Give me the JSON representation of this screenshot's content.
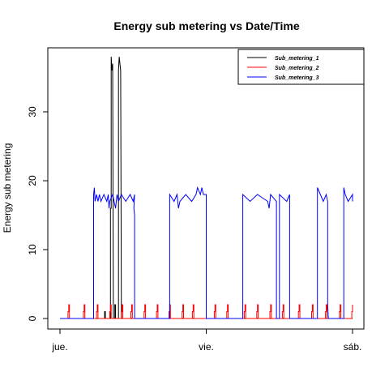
{
  "chart_data": {
    "type": "line",
    "title": "Energy sub metering vs Date/Time",
    "xlabel": "",
    "ylabel": "Energy sub metering",
    "x_range_days": [
      0,
      2
    ],
    "ylim": [
      0,
      38
    ],
    "x_ticks": [
      {
        "x": 0,
        "label": "jue."
      },
      {
        "x": 1,
        "label": "vie."
      },
      {
        "x": 2,
        "label": "sáb."
      }
    ],
    "y_ticks": [
      0,
      10,
      20,
      30
    ],
    "grid": false,
    "legend_position": "top-right",
    "series": [
      {
        "name": "Sub_metering_1",
        "color": "#000000",
        "points": [
          [
            0,
            0
          ],
          [
            0.305,
            0
          ],
          [
            0.305,
            1
          ],
          [
            0.31,
            1
          ],
          [
            0.31,
            0
          ],
          [
            0.345,
            0
          ],
          [
            0.345,
            16
          ],
          [
            0.35,
            16
          ],
          [
            0.35,
            38
          ],
          [
            0.355,
            36
          ],
          [
            0.36,
            37
          ],
          [
            0.365,
            0
          ],
          [
            0.375,
            0
          ],
          [
            0.375,
            2
          ],
          [
            0.38,
            2
          ],
          [
            0.38,
            0
          ],
          [
            0.4,
            0
          ],
          [
            0.4,
            36
          ],
          [
            0.405,
            38
          ],
          [
            0.41,
            37
          ],
          [
            0.415,
            36
          ],
          [
            0.42,
            0
          ],
          [
            2,
            0
          ]
        ]
      },
      {
        "name": "Sub_metering_2",
        "color": "#ff0000",
        "points": [
          [
            0,
            0
          ],
          [
            0.055,
            0
          ],
          [
            0.055,
            1
          ],
          [
            0.06,
            1
          ],
          [
            0.06,
            2
          ],
          [
            0.065,
            2
          ],
          [
            0.065,
            0
          ],
          [
            0.16,
            0
          ],
          [
            0.16,
            1
          ],
          [
            0.165,
            1
          ],
          [
            0.165,
            2
          ],
          [
            0.17,
            2
          ],
          [
            0.17,
            0
          ],
          [
            0.25,
            0
          ],
          [
            0.25,
            1
          ],
          [
            0.255,
            1
          ],
          [
            0.255,
            2
          ],
          [
            0.26,
            2
          ],
          [
            0.26,
            0
          ],
          [
            0.34,
            0
          ],
          [
            0.34,
            1
          ],
          [
            0.345,
            1
          ],
          [
            0.345,
            2
          ],
          [
            0.35,
            2
          ],
          [
            0.35,
            0
          ],
          [
            0.42,
            0
          ],
          [
            0.42,
            1
          ],
          [
            0.425,
            1
          ],
          [
            0.425,
            2
          ],
          [
            0.43,
            2
          ],
          [
            0.43,
            0
          ],
          [
            0.485,
            0
          ],
          [
            0.485,
            1
          ],
          [
            0.49,
            1
          ],
          [
            0.49,
            2
          ],
          [
            0.495,
            2
          ],
          [
            0.495,
            0
          ],
          [
            0.575,
            0
          ],
          [
            0.575,
            1
          ],
          [
            0.58,
            1
          ],
          [
            0.58,
            2
          ],
          [
            0.585,
            2
          ],
          [
            0.585,
            0
          ],
          [
            0.66,
            0
          ],
          [
            0.66,
            1
          ],
          [
            0.665,
            1
          ],
          [
            0.665,
            2
          ],
          [
            0.67,
            2
          ],
          [
            0.67,
            0
          ],
          [
            0.745,
            0
          ],
          [
            0.745,
            1
          ],
          [
            0.75,
            1
          ],
          [
            0.75,
            2
          ],
          [
            0.755,
            2
          ],
          [
            0.755,
            0
          ],
          [
            0.835,
            0
          ],
          [
            0.835,
            1
          ],
          [
            0.84,
            1
          ],
          [
            0.84,
            2
          ],
          [
            0.845,
            2
          ],
          [
            0.845,
            0
          ],
          [
            0.905,
            0
          ],
          [
            0.905,
            1
          ],
          [
            0.91,
            1
          ],
          [
            0.91,
            2
          ],
          [
            0.915,
            2
          ],
          [
            0.915,
            0
          ],
          [
            1.055,
            0
          ],
          [
            1.055,
            1
          ],
          [
            1.06,
            1
          ],
          [
            1.06,
            2
          ],
          [
            1.065,
            2
          ],
          [
            1.065,
            0
          ],
          [
            1.14,
            0
          ],
          [
            1.14,
            1
          ],
          [
            1.145,
            1
          ],
          [
            1.145,
            2
          ],
          [
            1.15,
            2
          ],
          [
            1.15,
            0
          ],
          [
            1.26,
            0
          ],
          [
            1.26,
            1
          ],
          [
            1.265,
            1
          ],
          [
            1.265,
            2
          ],
          [
            1.27,
            2
          ],
          [
            1.27,
            0
          ],
          [
            1.345,
            0
          ],
          [
            1.345,
            1
          ],
          [
            1.35,
            1
          ],
          [
            1.35,
            2
          ],
          [
            1.355,
            2
          ],
          [
            1.355,
            0
          ],
          [
            1.435,
            0
          ],
          [
            1.435,
            1
          ],
          [
            1.44,
            1
          ],
          [
            1.44,
            2
          ],
          [
            1.445,
            2
          ],
          [
            1.445,
            0
          ],
          [
            1.52,
            0
          ],
          [
            1.52,
            1
          ],
          [
            1.525,
            1
          ],
          [
            1.525,
            2
          ],
          [
            1.53,
            2
          ],
          [
            1.53,
            0
          ],
          [
            1.63,
            0
          ],
          [
            1.63,
            1
          ],
          [
            1.635,
            1
          ],
          [
            1.635,
            2
          ],
          [
            1.64,
            2
          ],
          [
            1.64,
            0
          ],
          [
            1.72,
            0
          ],
          [
            1.72,
            1
          ],
          [
            1.725,
            1
          ],
          [
            1.725,
            2
          ],
          [
            1.73,
            2
          ],
          [
            1.73,
            0
          ],
          [
            1.815,
            0
          ],
          [
            1.815,
            1
          ],
          [
            1.82,
            1
          ],
          [
            1.82,
            2
          ],
          [
            1.825,
            2
          ],
          [
            1.825,
            0
          ],
          [
            1.91,
            0
          ],
          [
            1.91,
            1
          ],
          [
            1.915,
            1
          ],
          [
            1.915,
            2
          ],
          [
            1.92,
            2
          ],
          [
            1.92,
            0
          ],
          [
            1.995,
            0
          ],
          [
            1.995,
            1
          ],
          [
            2,
            1
          ],
          [
            2,
            2
          ]
        ]
      },
      {
        "name": "Sub_metering_3",
        "color": "#0000ff",
        "points": [
          [
            0,
            0
          ],
          [
            0.23,
            0
          ],
          [
            0.23,
            18
          ],
          [
            0.235,
            19
          ],
          [
            0.24,
            17
          ],
          [
            0.25,
            18
          ],
          [
            0.26,
            17
          ],
          [
            0.27,
            18
          ],
          [
            0.28,
            17
          ],
          [
            0.3,
            18
          ],
          [
            0.32,
            17
          ],
          [
            0.33,
            18
          ],
          [
            0.335,
            16
          ],
          [
            0.34,
            17
          ],
          [
            0.36,
            18
          ],
          [
            0.38,
            16
          ],
          [
            0.385,
            17
          ],
          [
            0.39,
            18
          ],
          [
            0.4,
            17
          ],
          [
            0.42,
            18
          ],
          [
            0.45,
            17
          ],
          [
            0.48,
            18
          ],
          [
            0.5,
            17
          ],
          [
            0.51,
            18
          ],
          [
            0.505,
            16
          ],
          [
            0.51,
            15
          ],
          [
            0.51,
            0
          ],
          [
            0.75,
            0
          ],
          [
            0.75,
            18
          ],
          [
            0.78,
            17
          ],
          [
            0.8,
            18
          ],
          [
            0.81,
            16
          ],
          [
            0.82,
            17
          ],
          [
            0.86,
            18
          ],
          [
            0.9,
            17
          ],
          [
            0.93,
            18
          ],
          [
            0.94,
            19
          ],
          [
            0.96,
            18
          ],
          [
            0.97,
            19
          ],
          [
            0.98,
            18
          ],
          [
            1.0,
            18
          ],
          [
            1.0,
            0
          ],
          [
            1.25,
            0
          ],
          [
            1.25,
            18
          ],
          [
            1.3,
            17
          ],
          [
            1.35,
            18
          ],
          [
            1.42,
            17
          ],
          [
            1.43,
            16
          ],
          [
            1.44,
            18
          ],
          [
            1.48,
            17
          ],
          [
            1.48,
            0
          ],
          [
            1.5,
            0
          ],
          [
            1.5,
            18
          ],
          [
            1.55,
            17
          ],
          [
            1.57,
            18
          ],
          [
            1.57,
            0
          ],
          [
            1.76,
            0
          ],
          [
            1.76,
            19
          ],
          [
            1.78,
            18
          ],
          [
            1.8,
            17
          ],
          [
            1.82,
            18
          ],
          [
            1.83,
            17
          ],
          [
            1.83,
            2
          ],
          [
            1.835,
            0
          ],
          [
            1.94,
            0
          ],
          [
            1.94,
            19
          ],
          [
            1.95,
            18
          ],
          [
            1.97,
            17
          ],
          [
            2,
            18
          ],
          [
            2,
            17
          ]
        ]
      }
    ]
  }
}
